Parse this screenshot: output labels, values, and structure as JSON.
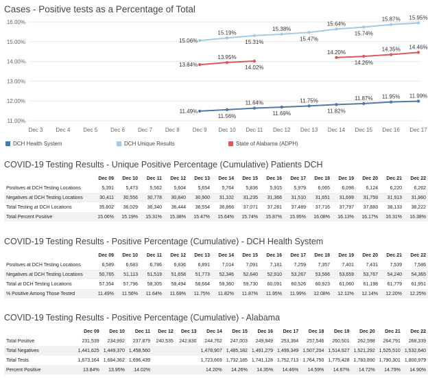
{
  "chart_title": "Cases - Positive tests as a Percentage of Total",
  "chart_data": {
    "type": "line",
    "title": "Cases - Positive tests as a Percentage of Total",
    "x": [
      "Dec 3",
      "Dec 4",
      "Dec 5",
      "Dec 6",
      "Dec 7",
      "Dec 8",
      "Dec 9",
      "Dec 10",
      "Dec 11",
      "Dec 12",
      "Dec 13",
      "Dec 14",
      "Dec 15",
      "Dec 16",
      "Dec 17"
    ],
    "yticks": [
      "11.00%",
      "12.00%",
      "13.00%",
      "14.00%",
      "15.00%",
      "16.00%"
    ],
    "ylim": [
      11.0,
      16.0
    ],
    "grid": true,
    "legend_position": "bottom",
    "series": [
      {
        "name": "DCH Health System",
        "color": "#4e79a7",
        "values": [
          null,
          null,
          null,
          null,
          null,
          null,
          11.49,
          11.56,
          11.64,
          11.69,
          11.75,
          11.82,
          11.87,
          11.95,
          11.99
        ],
        "labels": [
          null,
          null,
          null,
          null,
          null,
          null,
          "11.49%",
          "11.56%",
          "11.64%",
          "11.69%",
          "11.75%",
          "11.82%",
          "11.87%",
          "11.95%",
          "11.99%"
        ]
      },
      {
        "name": "DCH Unique Results",
        "color": "#a0cbe8",
        "values": [
          null,
          null,
          null,
          null,
          null,
          null,
          15.06,
          15.19,
          15.31,
          15.38,
          15.47,
          15.64,
          15.74,
          15.87,
          15.95
        ],
        "labels": [
          null,
          null,
          null,
          null,
          null,
          null,
          "15.06%",
          "15.19%",
          "15.31%",
          "15.38%",
          "15.47%",
          "15.64%",
          "15.74%",
          "15.87%",
          "15.95%"
        ]
      },
      {
        "name": "State of Alabama (ADPH)",
        "color": "#e15759",
        "values": [
          null,
          null,
          null,
          null,
          null,
          null,
          13.84,
          13.95,
          14.02,
          null,
          null,
          14.2,
          14.26,
          14.35,
          14.46
        ],
        "labels": [
          null,
          null,
          null,
          null,
          null,
          null,
          "13.84%",
          "13.95%",
          "14.02%",
          null,
          null,
          "14.20%",
          "14.26%",
          "14.35%",
          "14.46%"
        ]
      }
    ]
  },
  "dates": [
    "Dec 09",
    "Dec 10",
    "Dec 11",
    "Dec 12",
    "Dec 13",
    "Dec 14",
    "Dec 15",
    "Dec 16",
    "Dec 17",
    "Dec 18",
    "Dec 19",
    "Dec 20",
    "Dec 21",
    "Dec 22"
  ],
  "tables": [
    {
      "title": "COVID-19 Testing Results - Unique Positive Percentage (Cumulative) Patients DCH",
      "rows": [
        {
          "label": "Positives at DCH Testing Locations",
          "values": [
            "5,391",
            "5,473",
            "5,562",
            "5,604",
            "5,654",
            "5,764",
            "5,836",
            "5,915",
            "5,979",
            "6,065",
            "6,098",
            "6,124",
            "6,220",
            "6,262"
          ]
        },
        {
          "label": "Negatives at DCH Testing Locations",
          "values": [
            "30,411",
            "30,556",
            "30,778",
            "30,840",
            "30,900",
            "31,102",
            "31,235",
            "31,366",
            "31,510",
            "31,651",
            "31,699",
            "31,759",
            "31,913",
            "31,960"
          ]
        },
        {
          "label": "Total Testing at DCH Locations",
          "values": [
            "35,802",
            "36,029",
            "36,340",
            "36,444",
            "36,554",
            "36,866",
            "37,071",
            "37,281",
            "37,489",
            "37,716",
            "37,797",
            "37,883",
            "38,133",
            "38,222"
          ]
        },
        {
          "label": "Total Percent Positive",
          "values": [
            "15.06%",
            "15.19%",
            "15.31%",
            "15.38%",
            "15.47%",
            "15.64%",
            "15.74%",
            "15.87%",
            "15.95%",
            "16.08%",
            "16.13%",
            "16.17%",
            "16.31%",
            "16.38%"
          ]
        }
      ]
    },
    {
      "title": "COVID-19 Testing Results - Positive Percentage (Cumulative) - DCH Health System",
      "rows": [
        {
          "label": "Positives at DCH Testing Locations",
          "values": [
            "6,589",
            "6,683",
            "6,786",
            "6,836",
            "6,891",
            "7,014",
            "7,091",
            "7,181",
            "7,259",
            "7,357",
            "7,401",
            "7,431",
            "7,539",
            "7,586"
          ]
        },
        {
          "label": "Negatives at DCH Testing Locations",
          "values": [
            "50,765",
            "51,113",
            "51,519",
            "51,658",
            "51,773",
            "52,346",
            "52,640",
            "52,910",
            "53,267",
            "53,566",
            "53,659",
            "53,767",
            "54,240",
            "54,365"
          ]
        },
        {
          "label": "Total at DCH Testing Locations",
          "values": [
            "57,354",
            "57,796",
            "58,305",
            "58,494",
            "58,664",
            "59,360",
            "59,730",
            "60,091",
            "60,526",
            "60,923",
            "61,060",
            "61,198",
            "61,779",
            "61,951"
          ]
        },
        {
          "label": "% Positive Among Those Tested",
          "values": [
            "11.49%",
            "11.56%",
            "11.64%",
            "11.69%",
            "11.75%",
            "11.82%",
            "11.87%",
            "11.95%",
            "11.99%",
            "12.08%",
            "12.12%",
            "12.14%",
            "12.20%",
            "12.25%"
          ]
        }
      ]
    },
    {
      "title": "COVID-19 Testing Results - Positive Percentage (Cumulative) - Alabama",
      "rows": [
        {
          "label": "Total Positive",
          "values": [
            "231,539",
            "234,992",
            "237,879",
            "240,535",
            "242,830",
            "244,762",
            "247,003",
            "249,849",
            "253,364",
            "257,546",
            "260,501",
            "262,598",
            "264,791",
            "268,339"
          ]
        },
        {
          "label": "Total Negatives",
          "values": [
            "1,441,625",
            "1,449,370",
            "1,458,560",
            "",
            "",
            "1,478,907",
            "1,485,182",
            "1,491,279",
            "1,499,349",
            "1,507,204",
            "1,514,927",
            "1,521,292",
            "1,525,510",
            "1,532,640"
          ]
        },
        {
          "label": "Total Tests",
          "values": [
            "1,673,164",
            "1,684,362",
            "1,696,439",
            "",
            "",
            "1,723,669",
            "1,732,185",
            "1,741,128",
            "1,752,713",
            "1,764,750",
            "1,775,428",
            "1,783,890",
            "1,790,301",
            "1,800,979"
          ]
        },
        {
          "label": "Percent Positive",
          "values": [
            "13.84%",
            "13.95%",
            "14.02%",
            "",
            "",
            "14.20%",
            "14.26%",
            "14.35%",
            "14.46%",
            "14.59%",
            "14.67%",
            "14.72%",
            "14.79%",
            "14.90%"
          ]
        }
      ]
    }
  ]
}
